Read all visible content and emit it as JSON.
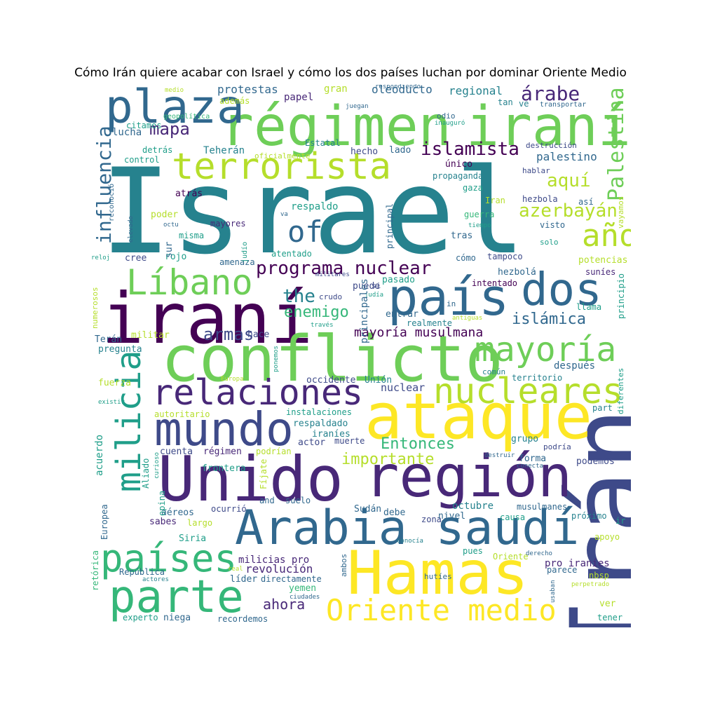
{
  "title": "Cómo Irán quiere acabar con Israel y cómo los dos países luchan por dominar Oriente Medio",
  "palette": {
    "purple": "#440154",
    "indigo": "#482878",
    "blue": "#3e4a89",
    "slate": "#31688e",
    "teal": "#26828e",
    "green_teal": "#1f9e89",
    "green": "#35b779",
    "lime": "#6ece58",
    "yellow_green": "#b5de2b",
    "yellow": "#fde725"
  },
  "words": [
    {
      "text": "Israel",
      "c": "teal"
    },
    {
      "text": "Irán",
      "c": "blue"
    },
    {
      "text": "régimen",
      "c": "lime"
    },
    {
      "text": "iraní",
      "c": "lime"
    },
    {
      "text": "iraní",
      "c": "purple"
    },
    {
      "text": "conflicto",
      "c": "lime"
    },
    {
      "text": "plaza",
      "c": "slate"
    },
    {
      "text": "terrorista",
      "c": "yellow_green"
    },
    {
      "text": "país",
      "c": "slate"
    },
    {
      "text": "dos",
      "c": "slate"
    },
    {
      "text": "Unido",
      "c": "indigo"
    },
    {
      "text": "región",
      "c": "indigo"
    },
    {
      "text": "ataque",
      "c": "yellow"
    },
    {
      "text": "Hamas",
      "c": "yellow"
    },
    {
      "text": "Arabia saudí",
      "c": "slate"
    },
    {
      "text": "mundo",
      "c": "blue"
    },
    {
      "text": "relaciones",
      "c": "indigo"
    },
    {
      "text": "nucleares",
      "c": "yellow_green"
    },
    {
      "text": "mayoría",
      "c": "lime"
    },
    {
      "text": "parte",
      "c": "green"
    },
    {
      "text": "países",
      "c": "green"
    },
    {
      "text": "Líbano",
      "c": "lime"
    },
    {
      "text": "milicia",
      "c": "green_teal"
    },
    {
      "text": "Oriente medio",
      "c": "yellow"
    },
    {
      "text": "año",
      "c": "yellow_green"
    },
    {
      "text": "of",
      "c": "slate"
    },
    {
      "text": "Palestina",
      "c": "lime"
    },
    {
      "text": "influencia",
      "c": "slate"
    },
    {
      "text": "programa nuclear",
      "c": "purple"
    },
    {
      "text": "islamista",
      "c": "purple"
    },
    {
      "text": "árabe",
      "c": "indigo"
    },
    {
      "text": "aquí",
      "c": "yellow_green"
    },
    {
      "text": "azerbayán",
      "c": "yellow_green"
    },
    {
      "text": "mapa",
      "c": "indigo"
    },
    {
      "text": "armas",
      "c": "blue"
    },
    {
      "text": "the",
      "c": "teal"
    },
    {
      "text": "enemigo",
      "c": "green"
    },
    {
      "text": "islámica",
      "c": "slate"
    },
    {
      "text": "mayoría musulmana",
      "c": "purple"
    },
    {
      "text": "Entonces",
      "c": "green"
    },
    {
      "text": "importante",
      "c": "yellow_green"
    },
    {
      "text": "ahora",
      "c": "indigo"
    },
    {
      "text": "revolución",
      "c": "indigo"
    },
    {
      "text": "protestas",
      "c": "slate"
    },
    {
      "text": "oleoducto",
      "c": "slate"
    },
    {
      "text": "regional",
      "c": "teal"
    },
    {
      "text": "lucha",
      "c": "slate"
    },
    {
      "text": "Teherán",
      "c": "teal"
    },
    {
      "text": "palestino",
      "c": "slate"
    },
    {
      "text": "gran",
      "c": "yellow_green"
    },
    {
      "text": "papel",
      "c": "indigo"
    },
    {
      "text": "respaldo",
      "c": "green_teal"
    },
    {
      "text": "mayores",
      "c": "indigo"
    },
    {
      "text": "cree",
      "c": "blue"
    },
    {
      "text": "rojo",
      "c": "green_teal"
    },
    {
      "text": "amenaza",
      "c": "slate"
    },
    {
      "text": "militar",
      "c": "yellow_green"
    },
    {
      "text": "pregunta",
      "c": "teal"
    },
    {
      "text": "hace",
      "c": "blue"
    },
    {
      "text": "Terán",
      "c": "slate"
    },
    {
      "text": "fuerza",
      "c": "yellow_green"
    },
    {
      "text": "occidente",
      "c": "blue"
    },
    {
      "text": "Unión",
      "c": "teal"
    },
    {
      "text": "nuclear",
      "c": "blue"
    },
    {
      "text": "autoritario",
      "c": "yellow_green"
    },
    {
      "text": "instalaciones",
      "c": "green_teal"
    },
    {
      "text": "respaldado",
      "c": "teal"
    },
    {
      "text": "iraníes",
      "c": "teal"
    },
    {
      "text": "actor",
      "c": "blue"
    },
    {
      "text": "muerte",
      "c": "blue"
    },
    {
      "text": "régimen",
      "c": "indigo"
    },
    {
      "text": "cuenta",
      "c": "blue"
    },
    {
      "text": "podrían",
      "c": "yellow_green"
    },
    {
      "text": "frontera",
      "c": "green_teal"
    },
    {
      "text": "misma",
      "c": "green_teal"
    },
    {
      "text": "atrás",
      "c": "purple"
    },
    {
      "text": "poder",
      "c": "yellow_green"
    },
    {
      "text": "detrás",
      "c": "green_teal"
    },
    {
      "text": "control",
      "c": "green_teal"
    },
    {
      "text": "citamos",
      "c": "green_teal"
    },
    {
      "text": "además",
      "c": "yellow_green"
    },
    {
      "text": "geopolítica",
      "c": "green"
    },
    {
      "text": "Estatal",
      "c": "teal"
    },
    {
      "text": "hecho",
      "c": "blue"
    },
    {
      "text": "lado",
      "c": "slate"
    },
    {
      "text": "único",
      "c": "purple"
    },
    {
      "text": "propaganda",
      "c": "teal"
    },
    {
      "text": "gaza",
      "c": "green_teal"
    },
    {
      "text": "guerra",
      "c": "green"
    },
    {
      "text": "Iran",
      "c": "yellow_green"
    },
    {
      "text": "tras",
      "c": "slate"
    },
    {
      "text": "hezbola",
      "c": "blue"
    },
    {
      "text": "así",
      "c": "slate"
    },
    {
      "text": "visto",
      "c": "slate"
    },
    {
      "text": "solo",
      "c": "green_teal"
    },
    {
      "text": "tampoco",
      "c": "blue"
    },
    {
      "text": "cómo",
      "c": "slate"
    },
    {
      "text": "hezbolá",
      "c": "slate"
    },
    {
      "text": "intentado",
      "c": "purple"
    },
    {
      "text": "potencias",
      "c": "yellow_green"
    },
    {
      "text": "suníes",
      "c": "indigo"
    },
    {
      "text": "llama",
      "c": "green_teal"
    },
    {
      "text": "realmente",
      "c": "teal"
    },
    {
      "text": "después",
      "c": "slate"
    },
    {
      "text": "territorio",
      "c": "teal"
    },
    {
      "text": "común",
      "c": "teal"
    },
    {
      "text": "grupo",
      "c": "teal"
    },
    {
      "text": "forma",
      "c": "slate"
    },
    {
      "text": "podemos",
      "c": "blue"
    },
    {
      "text": "podría",
      "c": "blue"
    },
    {
      "text": "octubre",
      "c": "teal"
    },
    {
      "text": "musulmanes",
      "c": "slate"
    },
    {
      "text": "próximo",
      "c": "teal"
    },
    {
      "text": "causa",
      "c": "green_teal"
    },
    {
      "text": "apoyo",
      "c": "yellow_green"
    },
    {
      "text": "pro iraníes",
      "c": "indigo"
    },
    {
      "text": "parece",
      "c": "slate"
    },
    {
      "text": "nbsp",
      "c": "yellow_green"
    },
    {
      "text": "ver",
      "c": "yellow_green"
    },
    {
      "text": "tener",
      "c": "green_teal"
    },
    {
      "text": "milicias pro",
      "c": "indigo"
    },
    {
      "text": "líder",
      "c": "slate"
    },
    {
      "text": "directamente",
      "c": "slate"
    },
    {
      "text": "yemen",
      "c": "green"
    },
    {
      "text": "recordemos",
      "c": "slate"
    },
    {
      "text": "niega",
      "c": "slate"
    },
    {
      "text": "experto",
      "c": "green_teal"
    },
    {
      "text": "República",
      "c": "slate"
    },
    {
      "text": "Siria",
      "c": "green_teal"
    },
    {
      "text": "sabes",
      "c": "indigo"
    },
    {
      "text": "largo",
      "c": "yellow_green"
    },
    {
      "text": "aéreos",
      "c": "slate"
    },
    {
      "text": "ocurrió",
      "c": "blue"
    },
    {
      "text": "and",
      "c": "slate"
    },
    {
      "text": "suelo",
      "c": "slate"
    },
    {
      "text": "Sudán",
      "c": "slate"
    },
    {
      "text": "debe",
      "c": "slate"
    },
    {
      "text": "zona",
      "c": "blue"
    },
    {
      "text": "nivel",
      "c": "slate"
    },
    {
      "text": "pues",
      "c": "green_teal"
    },
    {
      "text": "hutíes",
      "c": "slate"
    },
    {
      "text": "Oriente",
      "c": "yellow_green"
    },
    {
      "text": "tan",
      "c": "teal"
    },
    {
      "text": "ve",
      "c": "teal"
    },
    {
      "text": "odio",
      "c": "slate"
    },
    {
      "text": "destrucción",
      "c": "blue"
    },
    {
      "text": "hablar",
      "c": "blue"
    },
    {
      "text": "puede",
      "c": "blue"
    },
    {
      "text": "si",
      "c": "blue"
    },
    {
      "text": "pasado",
      "c": "green_teal"
    },
    {
      "text": "crudo",
      "c": "blue"
    },
    {
      "text": "in",
      "c": "slate"
    },
    {
      "text": "entrar",
      "c": "slate"
    },
    {
      "text": "atentado",
      "c": "green_teal"
    },
    {
      "text": "sur",
      "c": "slate"
    },
    {
      "text": "medio",
      "c": "yellow_green"
    },
    {
      "text": "respondiendo",
      "c": "slate"
    },
    {
      "text": "juegan",
      "c": "slate"
    },
    {
      "text": "transportar",
      "c": "slate"
    },
    {
      "text": "inauguró",
      "c": "green_teal"
    },
    {
      "text": "oficialmente",
      "c": "yellow_green"
    },
    {
      "text": "tiempo",
      "c": "green_teal"
    },
    {
      "text": "va",
      "c": "slate"
    },
    {
      "text": "octu",
      "c": "slate"
    },
    {
      "text": "reloj",
      "c": "green_teal"
    },
    {
      "text": "militares",
      "c": "blue"
    },
    {
      "text": "judía",
      "c": "green_teal"
    },
    {
      "text": "través",
      "c": "green_teal"
    },
    {
      "text": "antiguas",
      "c": "yellow_green"
    },
    {
      "text": "Europa",
      "c": "yellow_green"
    },
    {
      "text": "existir",
      "c": "green_teal"
    },
    {
      "text": "destruir",
      "c": "slate"
    },
    {
      "text": "conecta",
      "c": "slate"
    },
    {
      "text": "part",
      "c": "teal"
    },
    {
      "text": "conocía",
      "c": "teal"
    },
    {
      "text": "derecho",
      "c": "slate"
    },
    {
      "text": "perpetrado",
      "c": "yellow_green"
    },
    {
      "text": "real",
      "c": "yellow_green"
    },
    {
      "text": "actores",
      "c": "teal"
    },
    {
      "text": "ciudades",
      "c": "slate"
    },
    {
      "text": "ir",
      "c": "green_teal"
    },
    {
      "text": "principales",
      "c": "slate"
    },
    {
      "text": "principal",
      "c": "slate"
    },
    {
      "text": "judío",
      "c": "green_teal"
    },
    {
      "text": "numerosos",
      "c": "yellow_green"
    },
    {
      "text": "reconoció",
      "c": "slate"
    },
    {
      "text": "elevado",
      "c": "slate"
    },
    {
      "text": "acuerdo",
      "c": "green_teal"
    },
    {
      "text": "Aliado",
      "c": "green_teal"
    },
    {
      "text": "curioso",
      "c": "green_teal"
    },
    {
      "text": "Fíjate",
      "c": "yellow_green"
    },
    {
      "text": "opina",
      "c": "green_teal"
    },
    {
      "text": "Europea",
      "c": "slate"
    },
    {
      "text": "retórica",
      "c": "green"
    },
    {
      "text": "ponemos",
      "c": "green_teal"
    },
    {
      "text": "ambos",
      "c": "slate"
    },
    {
      "text": "usaban",
      "c": "slate"
    },
    {
      "text": "diferentes",
      "c": "green_teal"
    },
    {
      "text": "principio",
      "c": "green_teal"
    },
    {
      "text": "vayamos",
      "c": "yellow_green"
    }
  ]
}
